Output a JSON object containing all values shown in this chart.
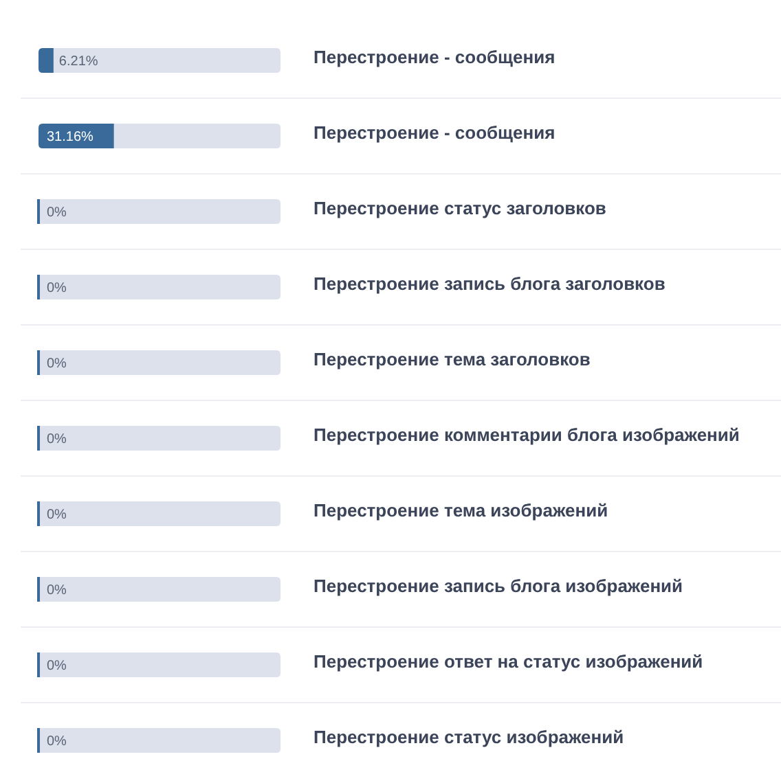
{
  "chart_data": {
    "type": "bar",
    "orientation": "horizontal",
    "tick_labels": "y",
    "categories": [
      "Перестроение - сообщения",
      "Перестроение - сообщения",
      "Перестроение статус заголовков",
      "Перестроение запись блога заголовков",
      "Перестроение тема заголовков",
      "Перестроение комментарии блога изображений",
      "Перестроение тема изображений",
      "Перестроение запись блога изображений",
      "Перестроение ответ на статус изображений",
      "Перестроение статус изображений"
    ],
    "values": [
      6.21,
      31.16,
      0,
      0,
      0,
      0,
      0,
      0,
      0,
      0
    ],
    "value_labels": [
      "6.21%",
      "31.16%",
      "0%",
      "0%",
      "0%",
      "0%",
      "0%",
      "0%",
      "0%",
      "0%"
    ],
    "color": "#3a6a99",
    "xlim": [
      0,
      100
    ]
  }
}
